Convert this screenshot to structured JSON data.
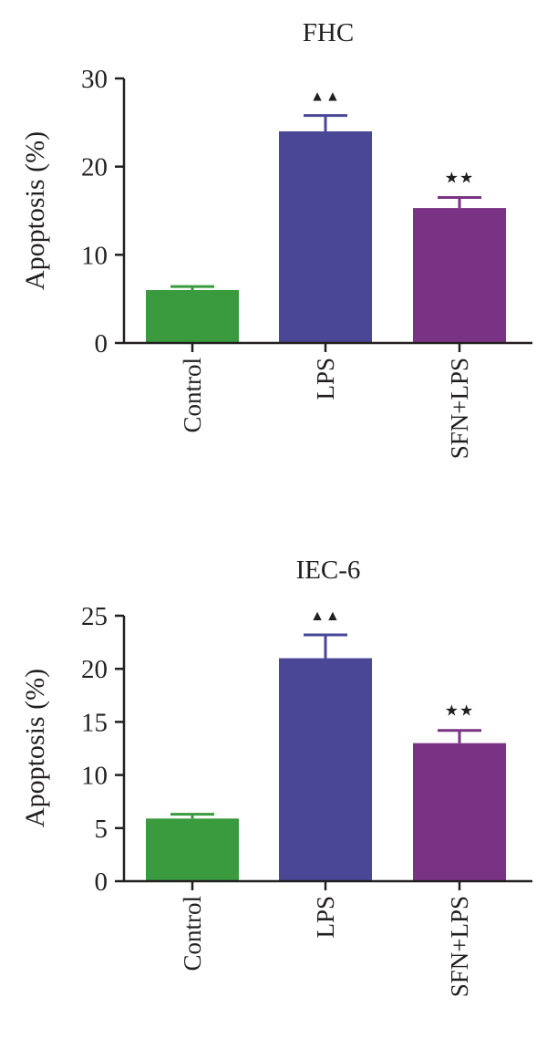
{
  "chart_data": [
    {
      "type": "bar",
      "title": "FHC",
      "ylabel": "Apoptosis (%)",
      "xlabel": "",
      "ylim": [
        0,
        30
      ],
      "yticks": [
        0,
        10,
        20,
        30
      ],
      "categories": [
        "Control",
        "LPS",
        "SFN+LPS"
      ],
      "values": [
        6.0,
        24.0,
        15.3
      ],
      "errors": [
        0.4,
        1.8,
        1.2
      ],
      "colors": [
        "#3a9a3e",
        "#4a4797",
        "#7a3384"
      ],
      "annotations": [
        "",
        "▲▲",
        "★★"
      ]
    },
    {
      "type": "bar",
      "title": "IEC-6",
      "ylabel": "Apoptosis (%)",
      "xlabel": "",
      "ylim": [
        0,
        25
      ],
      "yticks": [
        0,
        5,
        10,
        15,
        20,
        25
      ],
      "categories": [
        "Control",
        "LPS",
        "SFN+LPS"
      ],
      "values": [
        5.9,
        21.0,
        13.0
      ],
      "errors": [
        0.4,
        2.2,
        1.2
      ],
      "colors": [
        "#3a9a3e",
        "#4a4797",
        "#7a3384"
      ],
      "annotations": [
        "",
        "▲▲",
        "★★"
      ]
    }
  ]
}
